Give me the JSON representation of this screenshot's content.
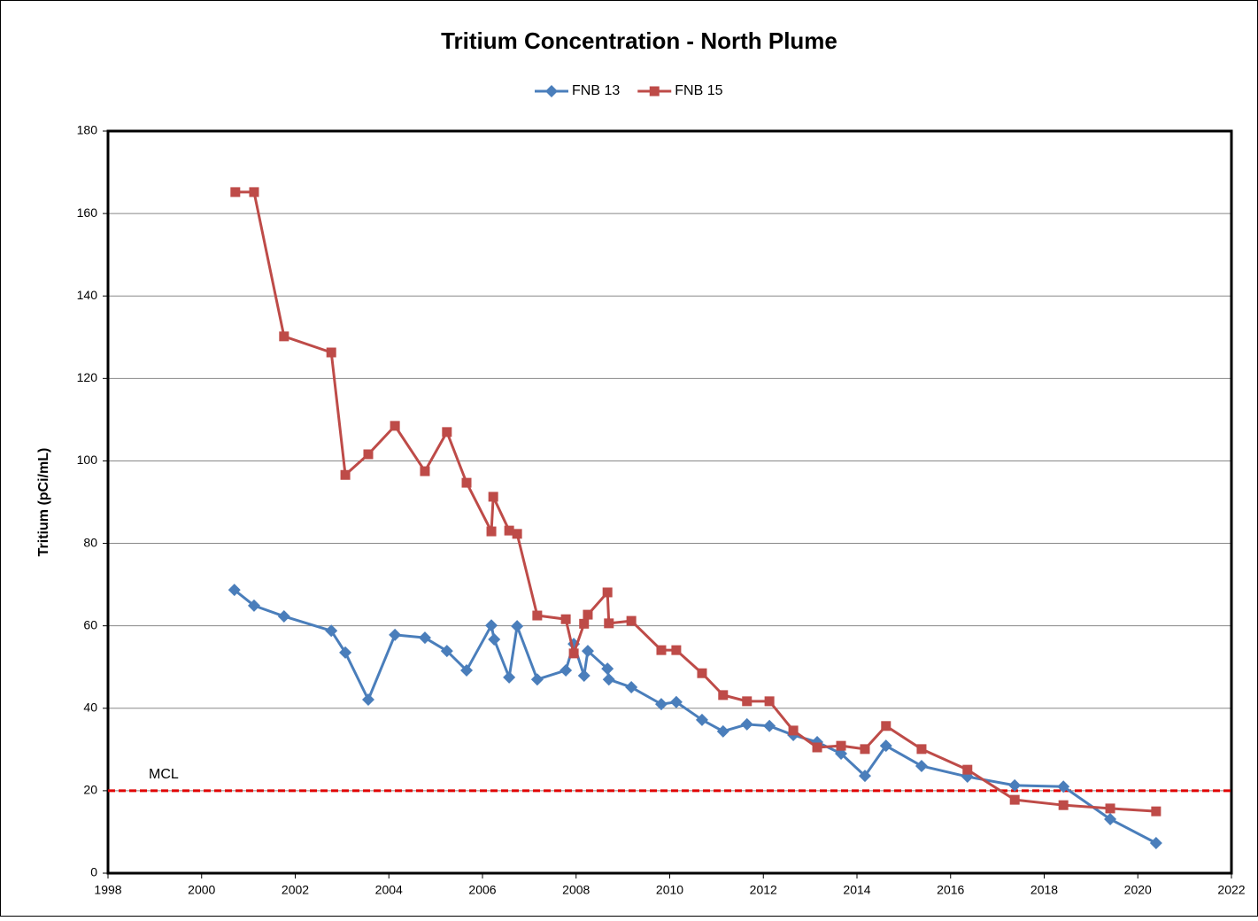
{
  "chart_data": {
    "type": "line",
    "title": "Tritium Concentration - North Plume",
    "y_label": "Tritium (pCi/mL)",
    "xlim": [
      1998,
      2022
    ],
    "xticks": [
      1998,
      2000,
      2002,
      2004,
      2006,
      2008,
      2010,
      2012,
      2014,
      2016,
      2018,
      2020,
      2022
    ],
    "ylim": [
      0,
      180
    ],
    "yticks": [
      0,
      20,
      40,
      60,
      80,
      100,
      120,
      140,
      160,
      180
    ],
    "grid": true,
    "legend": "top",
    "reference_line": {
      "label": "MCL",
      "value": 20,
      "color": "#e00000"
    },
    "series": [
      {
        "name": "FNB 13",
        "color": "#4a7ebb",
        "marker": "diamond",
        "x": [
          2000.7,
          2001.12,
          2001.76,
          2002.77,
          2003.07,
          2003.56,
          2004.13,
          2004.77,
          2005.24,
          2005.66,
          2006.19,
          2006.25,
          2006.57,
          2006.74,
          2007.17,
          2007.78,
          2007.95,
          2008.17,
          2008.25,
          2008.67,
          2008.7,
          2009.18,
          2009.82,
          2010.14,
          2010.69,
          2011.14,
          2011.65,
          2012.13,
          2012.64,
          2013.15,
          2013.66,
          2014.17,
          2014.62,
          2015.38,
          2016.36,
          2017.37,
          2018.41,
          2019.41,
          2020.39
        ],
        "values": [
          68.7,
          64.9,
          62.3,
          58.8,
          53.5,
          42.1,
          57.8,
          57.1,
          53.9,
          49.2,
          60.1,
          56.7,
          47.5,
          59.9,
          47.0,
          49.2,
          55.6,
          47.9,
          53.9,
          49.6,
          47.0,
          45.1,
          41.0,
          41.5,
          37.2,
          34.4,
          36.1,
          35.7,
          33.5,
          31.8,
          29.0,
          23.6,
          30.9,
          26.0,
          23.4,
          21.3,
          21.0,
          13.1,
          7.3
        ]
      },
      {
        "name": "FNB 15",
        "color": "#be4b48",
        "marker": "square",
        "x": [
          2000.72,
          2001.12,
          2001.76,
          2002.77,
          2003.07,
          2003.56,
          2004.13,
          2004.77,
          2005.24,
          2005.66,
          2006.19,
          2006.23,
          2006.57,
          2006.74,
          2007.17,
          2007.78,
          2007.95,
          2008.17,
          2008.25,
          2008.67,
          2008.7,
          2009.18,
          2009.82,
          2010.14,
          2010.69,
          2011.14,
          2011.65,
          2012.13,
          2012.64,
          2013.15,
          2013.66,
          2014.17,
          2014.62,
          2015.38,
          2016.36,
          2017.37,
          2018.41,
          2019.41,
          2020.39
        ],
        "values": [
          165.2,
          165.2,
          130.2,
          126.3,
          96.6,
          101.6,
          108.5,
          97.5,
          107.0,
          94.7,
          82.9,
          91.3,
          83.1,
          82.3,
          62.5,
          61.6,
          53.3,
          60.5,
          62.7,
          68.1,
          60.6,
          61.2,
          54.1,
          54.1,
          48.5,
          43.2,
          41.7,
          41.7,
          34.6,
          30.5,
          30.9,
          30.1,
          35.7,
          30.1,
          25.1,
          17.8,
          16.5,
          15.7,
          15.0
        ]
      }
    ]
  }
}
